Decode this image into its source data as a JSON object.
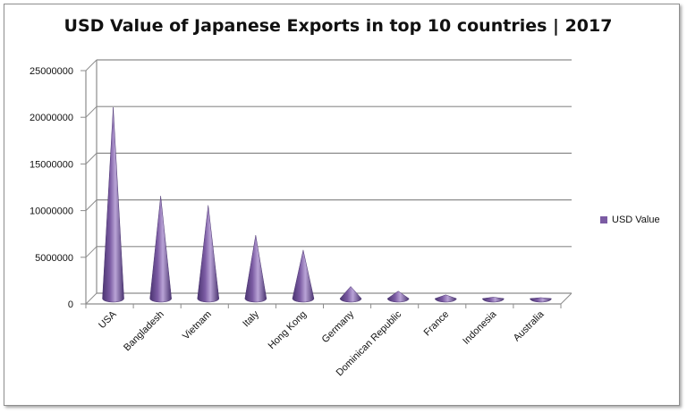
{
  "chart_data": {
    "type": "bar",
    "title": "USD Value of Japanese Exports in top 10 countries | 2017",
    "categories": [
      "USA",
      "Bangladesh",
      "Vietnam",
      "Italy",
      "Hong Kong",
      "Germany",
      "Dominican Republic",
      "France",
      "Indonesia",
      "Australia"
    ],
    "series": [
      {
        "name": "USD Value",
        "values": [
          20500000,
          11000000,
          10000000,
          6800000,
          5200000,
          1300000,
          800000,
          400000,
          150000,
          100000
        ]
      }
    ],
    "xlabel": "",
    "ylabel": "",
    "ylim": [
      0,
      25000000
    ],
    "yticks": [
      "0",
      "5000000",
      "10000000",
      "15000000",
      "20000000",
      "25000000"
    ],
    "grid": true,
    "legend_position": "right",
    "bar_shape": "cone",
    "colors": {
      "cone": "#7b5ba3",
      "cone_dark": "#4a3470",
      "cone_light": "#b9a3d6",
      "grid": "#8c8c8c"
    }
  }
}
